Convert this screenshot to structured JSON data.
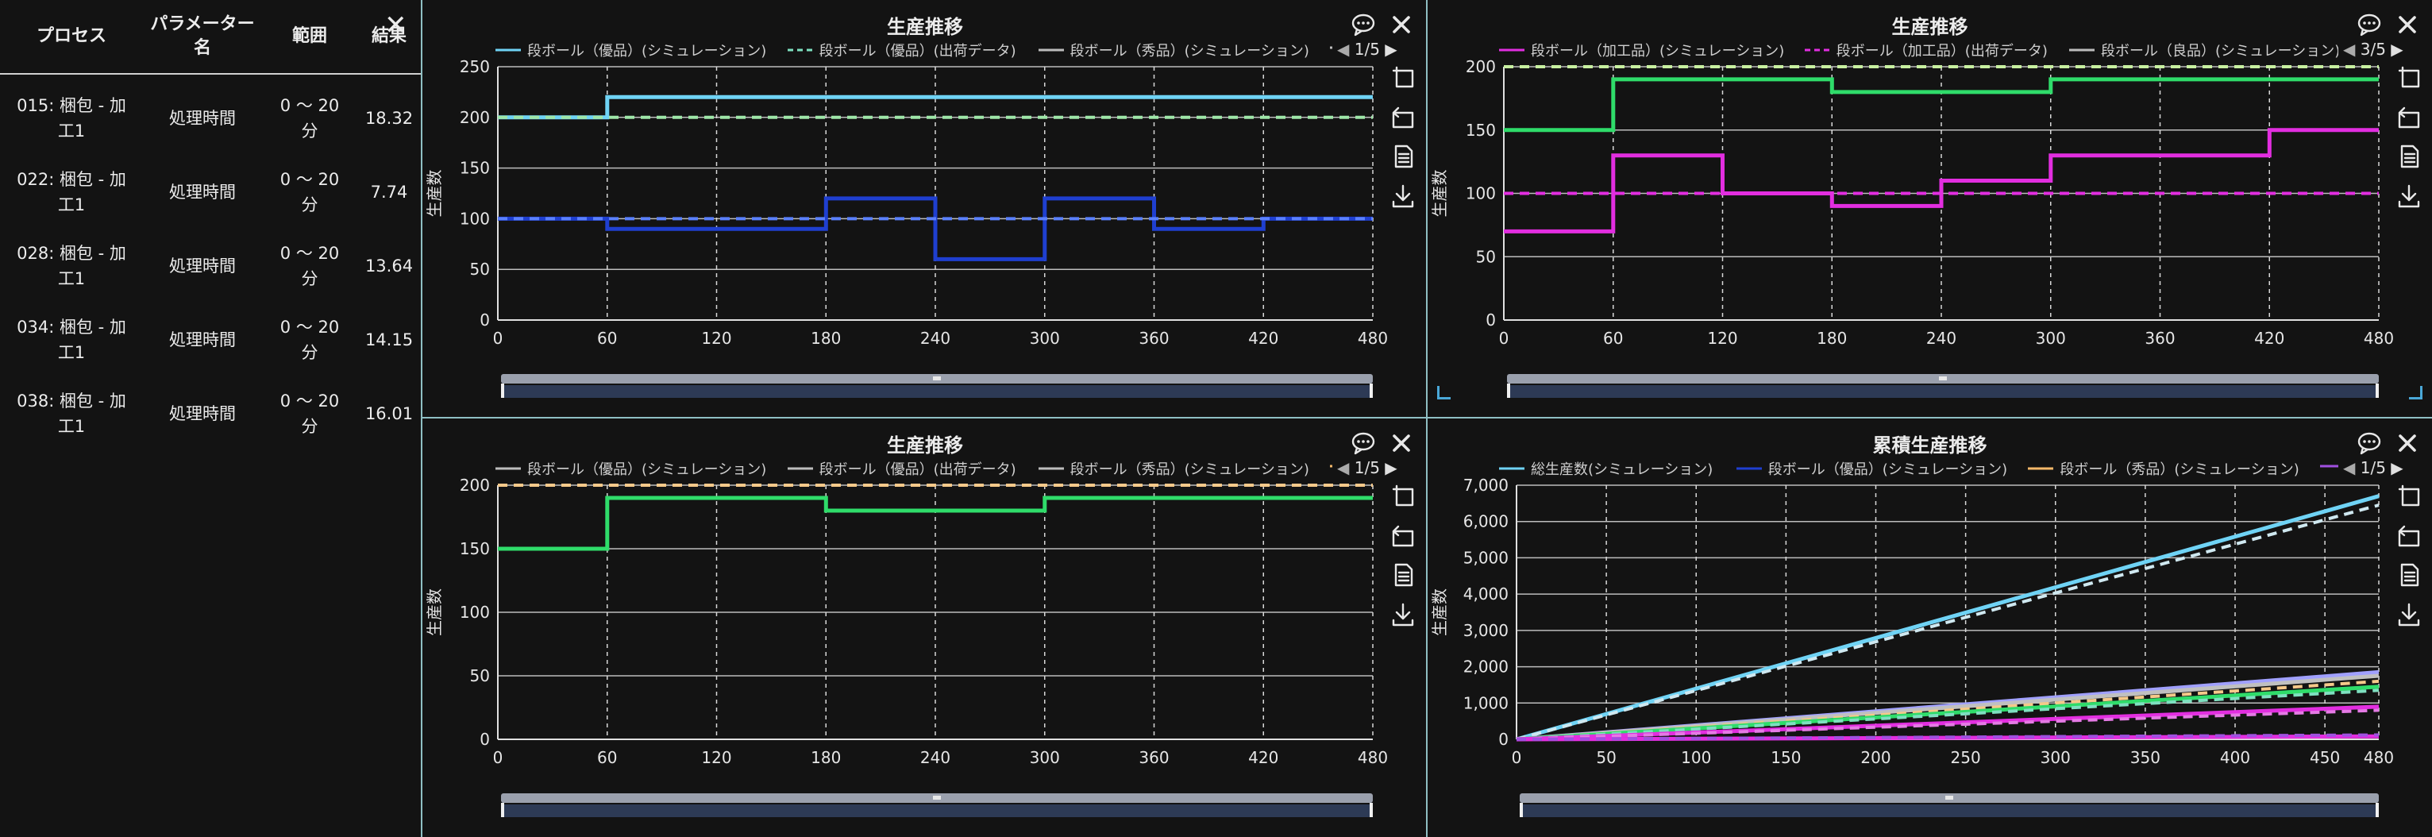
{
  "table": {
    "headers": [
      "プロセス",
      "パラメーター名",
      "範囲",
      "結果"
    ],
    "rows": [
      {
        "process": "015: 梱包 - 加工1",
        "param": "処理時間",
        "range": "0 ～ 20 分",
        "result": "18.32"
      },
      {
        "process": "022: 梱包 - 加工1",
        "param": "処理時間",
        "range": "0 ～ 20 分",
        "result": "7.74"
      },
      {
        "process": "028: 梱包 - 加工1",
        "param": "処理時間",
        "range": "0 ～ 20 分",
        "result": "13.64"
      },
      {
        "process": "034: 梱包 - 加工1",
        "param": "処理時間",
        "range": "0 ～ 20 分",
        "result": "14.15"
      },
      {
        "process": "038: 梱包 - 加工1",
        "param": "処理時間",
        "range": "0 ～ 20 分",
        "result": "16.01"
      }
    ]
  },
  "icons": {
    "close": "close-icon",
    "comment": "comment-icon",
    "copy": "copy-icon",
    "rotate": "rotate-icon",
    "document": "document-icon",
    "download": "download-icon"
  },
  "chart_data": [
    {
      "type": "line",
      "title": "生産推移",
      "ylabel": "生産数",
      "xlim": [
        0,
        480
      ],
      "ylim": [
        0,
        250
      ],
      "xticks": [
        0,
        60,
        120,
        180,
        240,
        300,
        360,
        420,
        480
      ],
      "yticks": [
        0,
        50,
        100,
        150,
        200,
        250
      ],
      "pager": "1/5",
      "grid": true,
      "legend_position": "top",
      "legend": [
        {
          "name": "段ボール（優品）(シミュレーション)",
          "color": "#6fd3f5",
          "dash": false
        },
        {
          "name": "段ボール（優品）(出荷データ)",
          "color": "#7ee0c0",
          "dash": true
        },
        {
          "name": "段ボール（秀品）(シミュレーション)",
          "color": "#bdbdbd",
          "dash": false
        },
        {
          "name": "",
          "color": "#bdbdbd",
          "dash": true
        }
      ],
      "series": [
        {
          "color": "#6fd3f5",
          "dash": false,
          "step": true,
          "points": [
            [
              0,
              200
            ],
            [
              60,
              200
            ],
            [
              60,
              220
            ],
            [
              480,
              220
            ]
          ]
        },
        {
          "color": "#9ee6a8",
          "dash": true,
          "step": false,
          "points": [
            [
              0,
              200
            ],
            [
              480,
              200
            ]
          ]
        },
        {
          "color": "#1f3fd0",
          "dash": false,
          "step": true,
          "points": [
            [
              0,
              100
            ],
            [
              60,
              100
            ],
            [
              60,
              90
            ],
            [
              180,
              90
            ],
            [
              180,
              120
            ],
            [
              240,
              120
            ],
            [
              240,
              60
            ],
            [
              300,
              60
            ],
            [
              300,
              120
            ],
            [
              360,
              120
            ],
            [
              360,
              90
            ],
            [
              420,
              90
            ],
            [
              420,
              100
            ],
            [
              480,
              100
            ]
          ]
        },
        {
          "color": "#5a80ff",
          "dash": true,
          "step": false,
          "points": [
            [
              0,
              100
            ],
            [
              480,
              100
            ]
          ]
        }
      ]
    },
    {
      "type": "line",
      "title": "生産推移",
      "ylabel": "生産数",
      "xlim": [
        0,
        480
      ],
      "ylim": [
        0,
        200
      ],
      "xticks": [
        0,
        60,
        120,
        180,
        240,
        300,
        360,
        420,
        480
      ],
      "yticks": [
        0,
        50,
        100,
        150,
        200
      ],
      "pager": "3/5",
      "grid": true,
      "legend_position": "top",
      "legend": [
        {
          "name": "段ボール（加工品）(シミュレーション)",
          "color": "#e22ee0",
          "dash": false
        },
        {
          "name": "段ボール（加工品）(出荷データ)",
          "color": "#e22ee0",
          "dash": true
        },
        {
          "name": "段ボール（良品）(シミュレーション)",
          "color": "#bdbdbd",
          "dash": false
        },
        {
          "name": "",
          "color": "#bdbdbd",
          "dash": true
        }
      ],
      "series": [
        {
          "color": "#c7f0a0",
          "dash": true,
          "step": false,
          "points": [
            [
              0,
              200
            ],
            [
              480,
              200
            ]
          ]
        },
        {
          "color": "#2fdc6a",
          "dash": false,
          "step": true,
          "points": [
            [
              0,
              150
            ],
            [
              60,
              150
            ],
            [
              60,
              190
            ],
            [
              180,
              190
            ],
            [
              180,
              180
            ],
            [
              300,
              180
            ],
            [
              300,
              190
            ],
            [
              480,
              190
            ]
          ]
        },
        {
          "color": "#e22ee0",
          "dash": true,
          "step": false,
          "points": [
            [
              0,
              100
            ],
            [
              480,
              100
            ]
          ]
        },
        {
          "color": "#e22ee0",
          "dash": false,
          "step": true,
          "points": [
            [
              0,
              70
            ],
            [
              60,
              70
            ],
            [
              60,
              130
            ],
            [
              120,
              130
            ],
            [
              120,
              100
            ],
            [
              180,
              100
            ],
            [
              180,
              90
            ],
            [
              240,
              90
            ],
            [
              240,
              110
            ],
            [
              300,
              110
            ],
            [
              300,
              130
            ],
            [
              420,
              130
            ],
            [
              420,
              150
            ],
            [
              480,
              150
            ]
          ]
        }
      ]
    },
    {
      "type": "line",
      "title": "生産推移",
      "ylabel": "生産数",
      "xlim": [
        0,
        480
      ],
      "ylim": [
        0,
        200
      ],
      "xticks": [
        0,
        60,
        120,
        180,
        240,
        300,
        360,
        420,
        480
      ],
      "yticks": [
        0,
        50,
        100,
        150,
        200
      ],
      "pager": "1/5",
      "grid": true,
      "legend_position": "top",
      "legend": [
        {
          "name": "段ボール（優品）(シミュレーション)",
          "color": "#bdbdbd",
          "dash": false
        },
        {
          "name": "段ボール（優品）(出荷データ)",
          "color": "#bdbdbd",
          "dash": false
        },
        {
          "name": "段ボール（秀品）(シミュレーション)",
          "color": "#bdbdbd",
          "dash": false
        },
        {
          "name": "",
          "color": "#f5b86a",
          "dash": true
        }
      ],
      "series": [
        {
          "color": "#f5c98a",
          "dash": true,
          "step": false,
          "points": [
            [
              0,
              200
            ],
            [
              480,
              200
            ]
          ]
        },
        {
          "color": "#2fdc6a",
          "dash": false,
          "step": true,
          "points": [
            [
              0,
              150
            ],
            [
              60,
              150
            ],
            [
              60,
              190
            ],
            [
              180,
              190
            ],
            [
              180,
              180
            ],
            [
              300,
              180
            ],
            [
              300,
              190
            ],
            [
              480,
              190
            ]
          ]
        }
      ]
    },
    {
      "type": "line",
      "title": "累積生産推移",
      "ylabel": "生産数",
      "xlim": [
        0,
        480
      ],
      "ylim": [
        0,
        7000
      ],
      "xticks": [
        0,
        50,
        100,
        150,
        200,
        250,
        300,
        350,
        400,
        450,
        480
      ],
      "yticks": [
        0,
        1000,
        2000,
        3000,
        4000,
        5000,
        6000,
        7000
      ],
      "ytick_labels": [
        "0",
        "1,000",
        "2,000",
        "3,000",
        "4,000",
        "5,000",
        "6,000",
        "7,000"
      ],
      "pager": "1/5",
      "grid": true,
      "legend_position": "top",
      "legend": [
        {
          "name": "総生産数(シミュレーション)",
          "color": "#6fd3f5",
          "dash": false
        },
        {
          "name": "段ボール（優品）(シミュレーション)",
          "color": "#1f3fd0",
          "dash": false
        },
        {
          "name": "段ボール（秀品）(シミュレーション)",
          "color": "#f5b86a",
          "dash": false
        },
        {
          "name": "",
          "color": "#a050e0",
          "dash": false
        }
      ],
      "series": [
        {
          "color": "#6fd3f5",
          "dash": false,
          "step": false,
          "points": [
            [
              0,
              0
            ],
            [
              480,
              6700
            ]
          ]
        },
        {
          "color": "#cfe8f0",
          "dash": true,
          "step": false,
          "points": [
            [
              0,
              0
            ],
            [
              480,
              6450
            ]
          ]
        },
        {
          "color": "#a0a0ff",
          "dash": false,
          "step": false,
          "points": [
            [
              0,
              0
            ],
            [
              480,
              1850
            ]
          ]
        },
        {
          "color": "#c0c0c0",
          "dash": false,
          "step": false,
          "points": [
            [
              0,
              0
            ],
            [
              480,
              1750
            ]
          ]
        },
        {
          "color": "#f5c98a",
          "dash": true,
          "step": false,
          "points": [
            [
              0,
              0
            ],
            [
              480,
              1600
            ]
          ]
        },
        {
          "color": "#2fdc6a",
          "dash": false,
          "step": false,
          "points": [
            [
              0,
              0
            ],
            [
              480,
              1450
            ]
          ]
        },
        {
          "color": "#7ee0c0",
          "dash": true,
          "step": false,
          "points": [
            [
              0,
              0
            ],
            [
              480,
              1350
            ]
          ]
        },
        {
          "color": "#e22ee0",
          "dash": false,
          "step": false,
          "points": [
            [
              0,
              0
            ],
            [
              480,
              900
            ]
          ]
        },
        {
          "color": "#e57ae5",
          "dash": true,
          "step": false,
          "points": [
            [
              0,
              0
            ],
            [
              480,
              800
            ]
          ]
        },
        {
          "color": "#e22ee0",
          "dash": false,
          "step": false,
          "points": [
            [
              0,
              0
            ],
            [
              480,
              80
            ]
          ]
        },
        {
          "color": "#a050e0",
          "dash": true,
          "step": false,
          "points": [
            [
              0,
              0
            ],
            [
              480,
              120
            ]
          ]
        }
      ]
    }
  ]
}
